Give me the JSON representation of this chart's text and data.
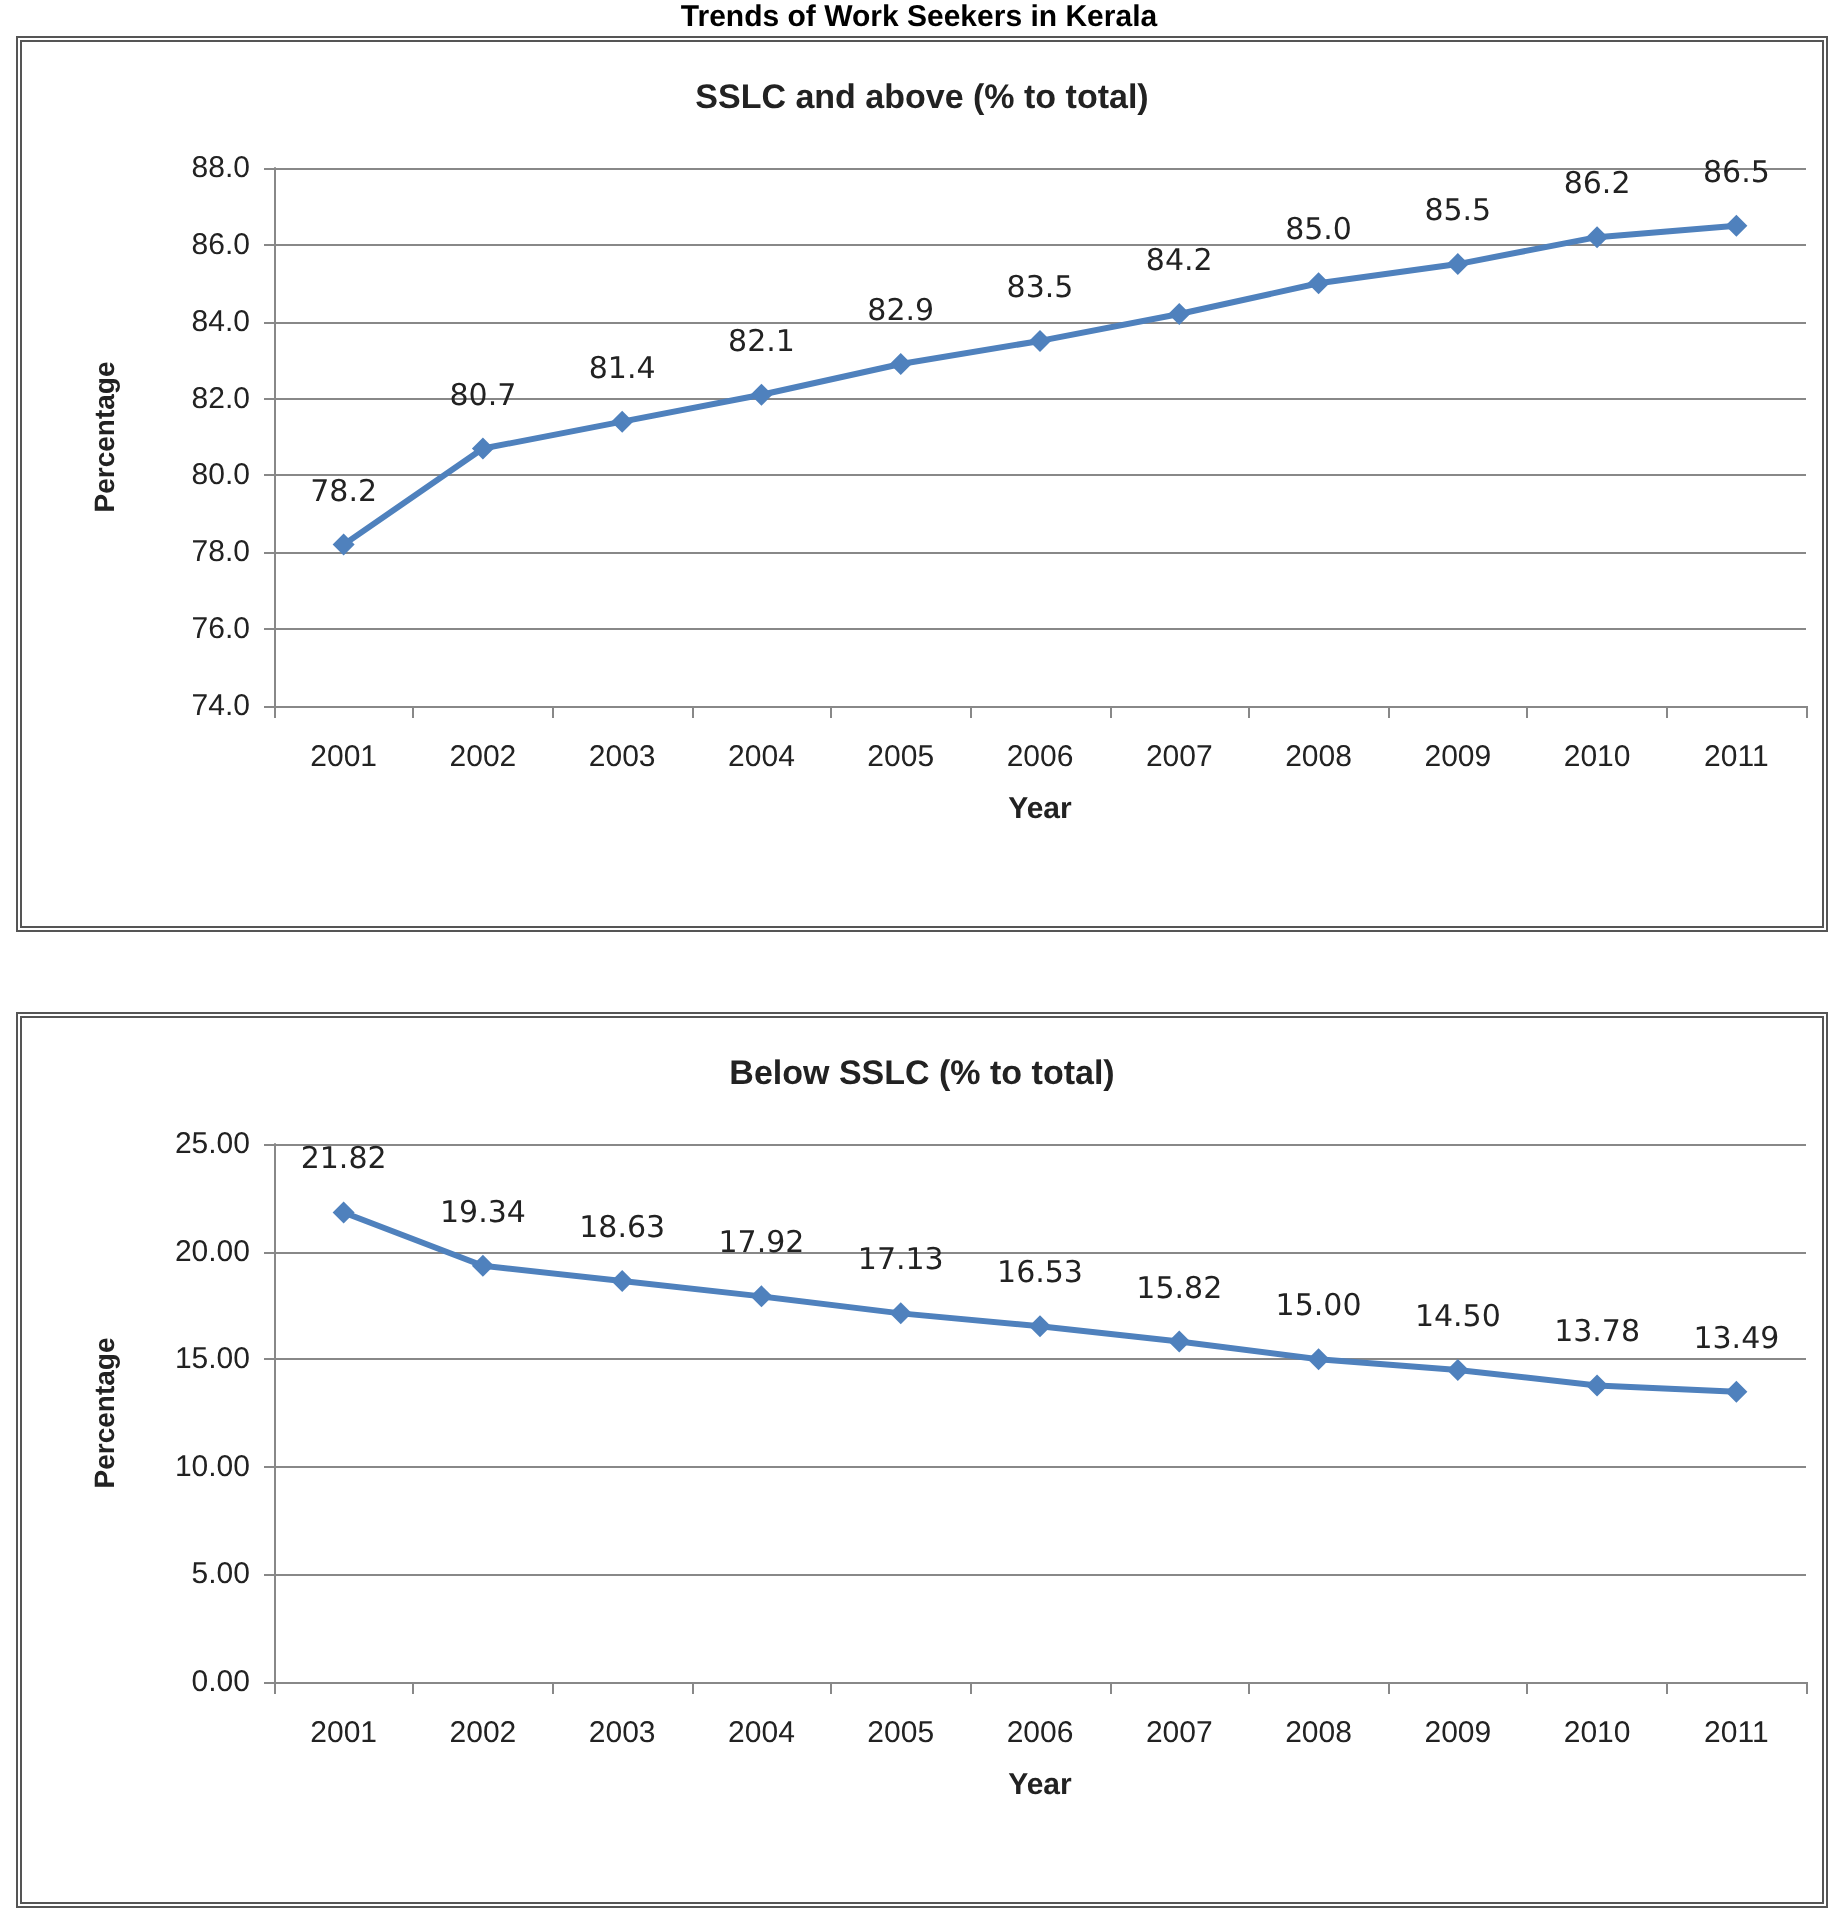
{
  "chart_data": [
    {
      "type": "line",
      "title": "SSLC and above (% to total)",
      "xlabel": "Year",
      "ylabel": "Percentage",
      "annotations": [
        "Trends of Work Seekers in Kerala"
      ],
      "categories": [
        "2001",
        "2002",
        "2003",
        "2004",
        "2005",
        "2006",
        "2007",
        "2008",
        "2009",
        "2010",
        "2011"
      ],
      "series": [
        {
          "color": "#4f81bd",
          "values": [
            78.2,
            80.7,
            81.4,
            82.1,
            82.9,
            83.5,
            84.2,
            85.0,
            85.5,
            86.2,
            86.5
          ],
          "value_labels": [
            "78.2",
            "80.7",
            "81.4",
            "82.1",
            "82.9",
            "83.5",
            "84.2",
            "85.0",
            "85.5",
            "86.2",
            "86.5"
          ]
        }
      ],
      "ylim": [
        74,
        88
      ],
      "yticks": [
        {
          "value": 74,
          "label": "74.0"
        },
        {
          "value": 76,
          "label": "76.0"
        },
        {
          "value": 78,
          "label": "78.0"
        },
        {
          "value": 80,
          "label": "80.0"
        },
        {
          "value": 82,
          "label": "82.0"
        },
        {
          "value": 84,
          "label": "84.0"
        },
        {
          "value": 86,
          "label": "86.0"
        },
        {
          "value": 88,
          "label": "88.0"
        }
      ],
      "grid": "y",
      "marker": "diamond",
      "line_style": "solid"
    },
    {
      "type": "line",
      "title": "Below SSLC (% to total)",
      "xlabel": "Year",
      "ylabel": "Percentage",
      "categories": [
        "2001",
        "2002",
        "2003",
        "2004",
        "2005",
        "2006",
        "2007",
        "2008",
        "2009",
        "2010",
        "2011"
      ],
      "series": [
        {
          "color": "#4f81bd",
          "values": [
            21.82,
            19.34,
            18.63,
            17.92,
            17.13,
            16.53,
            15.82,
            15.0,
            14.5,
            13.78,
            13.49
          ],
          "value_labels": [
            "21.82",
            "19.34",
            "18.63",
            "17.92",
            "17.13",
            "16.53",
            "15.82",
            "15.00",
            "14.50",
            "13.78",
            "13.49"
          ]
        }
      ],
      "ylim": [
        0,
        25
      ],
      "yticks": [
        {
          "value": 0,
          "label": "0.00"
        },
        {
          "value": 5,
          "label": "5.00"
        },
        {
          "value": 10,
          "label": "10.00"
        },
        {
          "value": 15,
          "label": "15.00"
        },
        {
          "value": 20,
          "label": "20.00"
        },
        {
          "value": 25,
          "label": "25.00"
        }
      ],
      "grid": "y",
      "marker": "diamond",
      "line_style": "solid"
    }
  ]
}
